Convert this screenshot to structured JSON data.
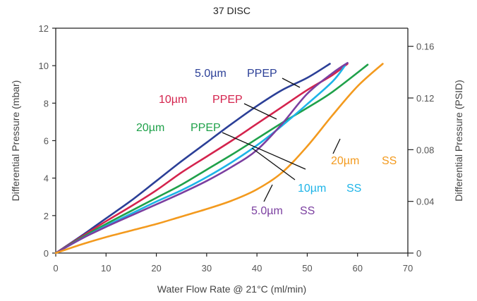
{
  "chart_data": {
    "type": "line",
    "title": "37 DISC",
    "xlabel": "Water Flow Rate @ 21°C (ml/min)",
    "ylabel": "Differential Pressure (mbar)",
    "y2label": "Differential Pressure (PSID)",
    "xlim": [
      0,
      70
    ],
    "ylim": [
      0,
      12
    ],
    "y2lim": [
      0,
      0.174
    ],
    "x_ticks": [
      "0",
      "10",
      "20",
      "30",
      "40",
      "50",
      "60",
      "70"
    ],
    "y_ticks": [
      "0",
      "2",
      "4",
      "6",
      "8",
      "10",
      "12"
    ],
    "y2_ticks": [
      "0",
      "0.04",
      "0.08",
      "0.12",
      "0.16"
    ],
    "grid": false,
    "series": [
      {
        "name": "5.0µm PPEP",
        "label_parts": [
          "5.0µm",
          "PPEP"
        ],
        "color": "#2b3f97",
        "points": [
          [
            0,
            0
          ],
          [
            5,
            0.9
          ],
          [
            10,
            1.85
          ],
          [
            15,
            2.8
          ],
          [
            20,
            3.85
          ],
          [
            25,
            4.9
          ],
          [
            30,
            5.9
          ],
          [
            35,
            6.9
          ],
          [
            40,
            7.85
          ],
          [
            45,
            8.7
          ],
          [
            50,
            9.35
          ],
          [
            54.5,
            10.1
          ]
        ]
      },
      {
        "name": "10µm PPEP",
        "label_parts": [
          "10µm",
          "PPEP"
        ],
        "color": "#d4234d",
        "points": [
          [
            0,
            0
          ],
          [
            5,
            0.85
          ],
          [
            10,
            1.7
          ],
          [
            15,
            2.5
          ],
          [
            20,
            3.35
          ],
          [
            25,
            4.3
          ],
          [
            30,
            5.15
          ],
          [
            35,
            6.0
          ],
          [
            40,
            6.9
          ],
          [
            45,
            7.8
          ],
          [
            50,
            8.7
          ],
          [
            55,
            9.5
          ],
          [
            58,
            10.1
          ]
        ]
      },
      {
        "name": "20µm PPEP",
        "label_parts": [
          "20µm",
          "PPEP"
        ],
        "color": "#1fa14a",
        "points": [
          [
            0,
            0
          ],
          [
            5,
            0.8
          ],
          [
            10,
            1.55
          ],
          [
            15,
            2.25
          ],
          [
            20,
            2.95
          ],
          [
            25,
            3.65
          ],
          [
            30,
            4.45
          ],
          [
            35,
            5.25
          ],
          [
            40,
            6.1
          ],
          [
            45,
            6.95
          ],
          [
            50,
            7.75
          ],
          [
            55,
            8.6
          ],
          [
            62,
            10.05
          ]
        ]
      },
      {
        "name": "10µm SS",
        "label_parts": [
          "10µm",
          "SS"
        ],
        "color": "#1db4e8",
        "points": [
          [
            0,
            0
          ],
          [
            5,
            0.75
          ],
          [
            10,
            1.45
          ],
          [
            15,
            2.1
          ],
          [
            20,
            2.75
          ],
          [
            25,
            3.35
          ],
          [
            30,
            4.05
          ],
          [
            35,
            4.85
          ],
          [
            40,
            5.75
          ],
          [
            45,
            6.8
          ],
          [
            50,
            7.95
          ],
          [
            55,
            9.15
          ],
          [
            57.5,
            10.0
          ]
        ]
      },
      {
        "name": "5.0µm SS",
        "label_parts": [
          "5.0µm",
          "SS"
        ],
        "color": "#7b3fa0",
        "points": [
          [
            0,
            0
          ],
          [
            5,
            0.75
          ],
          [
            10,
            1.4
          ],
          [
            15,
            2.0
          ],
          [
            20,
            2.6
          ],
          [
            25,
            3.2
          ],
          [
            30,
            3.85
          ],
          [
            35,
            4.6
          ],
          [
            40,
            5.5
          ],
          [
            45,
            6.9
          ],
          [
            50,
            8.5
          ],
          [
            55,
            9.6
          ],
          [
            58,
            10.15
          ]
        ]
      },
      {
        "name": "20µm SS",
        "label_parts": [
          "20µm",
          "SS"
        ],
        "color": "#f39a1e",
        "points": [
          [
            0,
            0
          ],
          [
            5,
            0.45
          ],
          [
            10,
            0.85
          ],
          [
            15,
            1.2
          ],
          [
            20,
            1.55
          ],
          [
            25,
            1.95
          ],
          [
            30,
            2.35
          ],
          [
            35,
            2.8
          ],
          [
            40,
            3.4
          ],
          [
            45,
            4.3
          ],
          [
            50,
            5.7
          ],
          [
            55,
            7.35
          ],
          [
            60,
            8.9
          ],
          [
            65,
            10.1
          ]
        ]
      }
    ]
  }
}
